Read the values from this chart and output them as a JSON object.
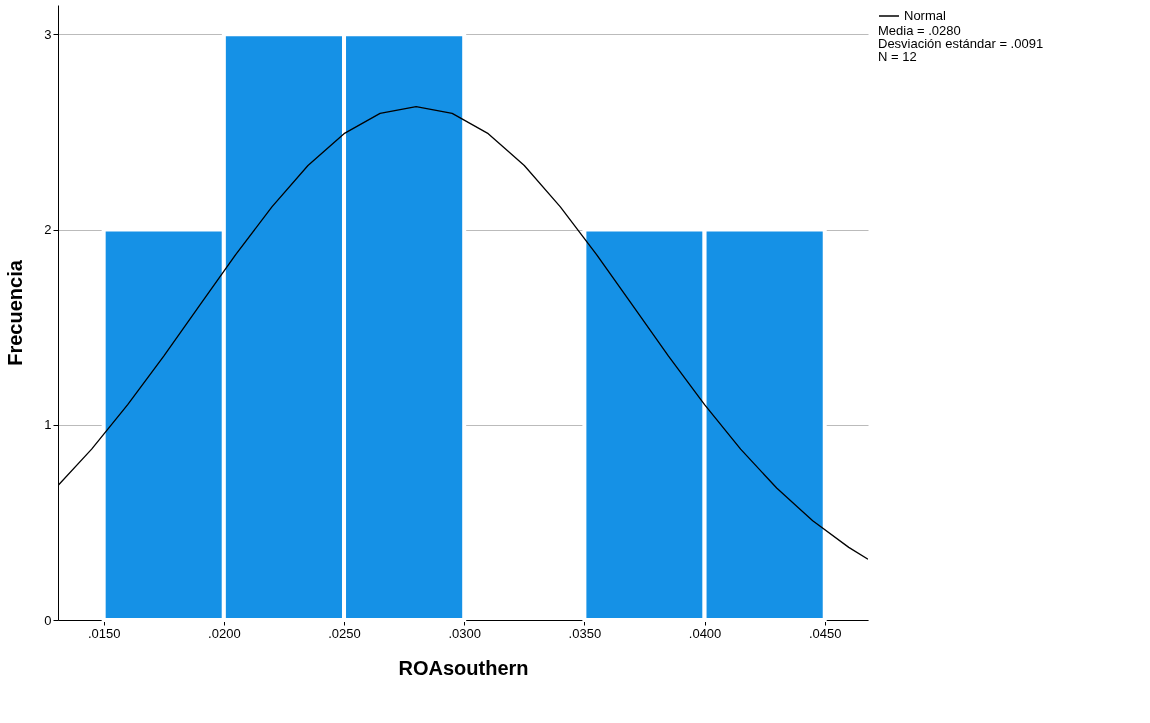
{
  "chart_data": {
    "type": "histogram",
    "xlabel": "ROAsouthern",
    "ylabel": "Frecuencia",
    "bins": [
      0.015,
      0.02,
      0.025,
      0.03,
      0.035,
      0.04,
      0.045
    ],
    "values": [
      2,
      3,
      3,
      0,
      2,
      2
    ],
    "color": "#1591e6",
    "xlim": [
      0.0131,
      0.0468
    ],
    "xticks": [
      {
        "value": 0.015,
        "label": ".0150"
      },
      {
        "value": 0.02,
        "label": ".0200"
      },
      {
        "value": 0.025,
        "label": ".0250"
      },
      {
        "value": 0.03,
        "label": ".0300"
      },
      {
        "value": 0.035,
        "label": ".0350"
      },
      {
        "value": 0.04,
        "label": ".0400"
      },
      {
        "value": 0.045,
        "label": ".0450"
      }
    ],
    "ylim": [
      0,
      3.15
    ],
    "yticks": [
      0,
      1,
      2,
      3
    ],
    "grid": "y",
    "legend": "top right",
    "annotations": [
      "Media = .0280",
      "Desviación estándar = .0091",
      "N = 12"
    ],
    "series": [
      {
        "type": "line",
        "name": "Normal",
        "color": "#000000",
        "x": [
          0.0131,
          0.0145,
          0.016,
          0.0175,
          0.019,
          0.0205,
          0.022,
          0.0235,
          0.025,
          0.0265,
          0.028,
          0.0295,
          0.031,
          0.0325,
          0.034,
          0.0355,
          0.037,
          0.0385,
          0.04,
          0.0415,
          0.043,
          0.0445,
          0.046,
          0.0468
        ],
        "values": [
          0.689,
          0.875,
          1.103,
          1.352,
          1.613,
          1.873,
          2.116,
          2.328,
          2.491,
          2.595,
          2.63,
          2.595,
          2.491,
          2.328,
          2.116,
          1.873,
          1.613,
          1.352,
          1.103,
          0.875,
          0.676,
          0.508,
          0.372,
          0.311
        ]
      }
    ]
  }
}
